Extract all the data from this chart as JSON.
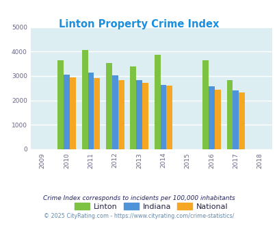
{
  "title": "Linton Property Crime Index",
  "years": [
    2009,
    2010,
    2011,
    2012,
    2013,
    2014,
    2015,
    2016,
    2017,
    2018
  ],
  "data_years": [
    2010,
    2011,
    2012,
    2013,
    2014,
    2016,
    2017
  ],
  "linton": [
    3650,
    4050,
    3520,
    3380,
    3880,
    3650,
    2830
  ],
  "indiana": [
    3060,
    3140,
    3030,
    2840,
    2630,
    2570,
    2420
  ],
  "national": [
    2940,
    2900,
    2840,
    2720,
    2590,
    2440,
    2330
  ],
  "color_linton": "#7dc242",
  "color_indiana": "#4f93d8",
  "color_national": "#f5a623",
  "ylim": [
    0,
    5000
  ],
  "yticks": [
    0,
    1000,
    2000,
    3000,
    4000,
    5000
  ],
  "bar_width": 0.25,
  "bg_color": "#ddeef3",
  "grid_color": "#ffffff",
  "title_color": "#1a8fe0",
  "legend_labels": [
    "Linton",
    "Indiana",
    "National"
  ],
  "footnote1": "Crime Index corresponds to incidents per 100,000 inhabitants",
  "footnote2": "© 2025 CityRating.com - https://www.cityrating.com/crime-statistics/",
  "footnote_color1": "#222266",
  "footnote_color2": "#6688aa"
}
